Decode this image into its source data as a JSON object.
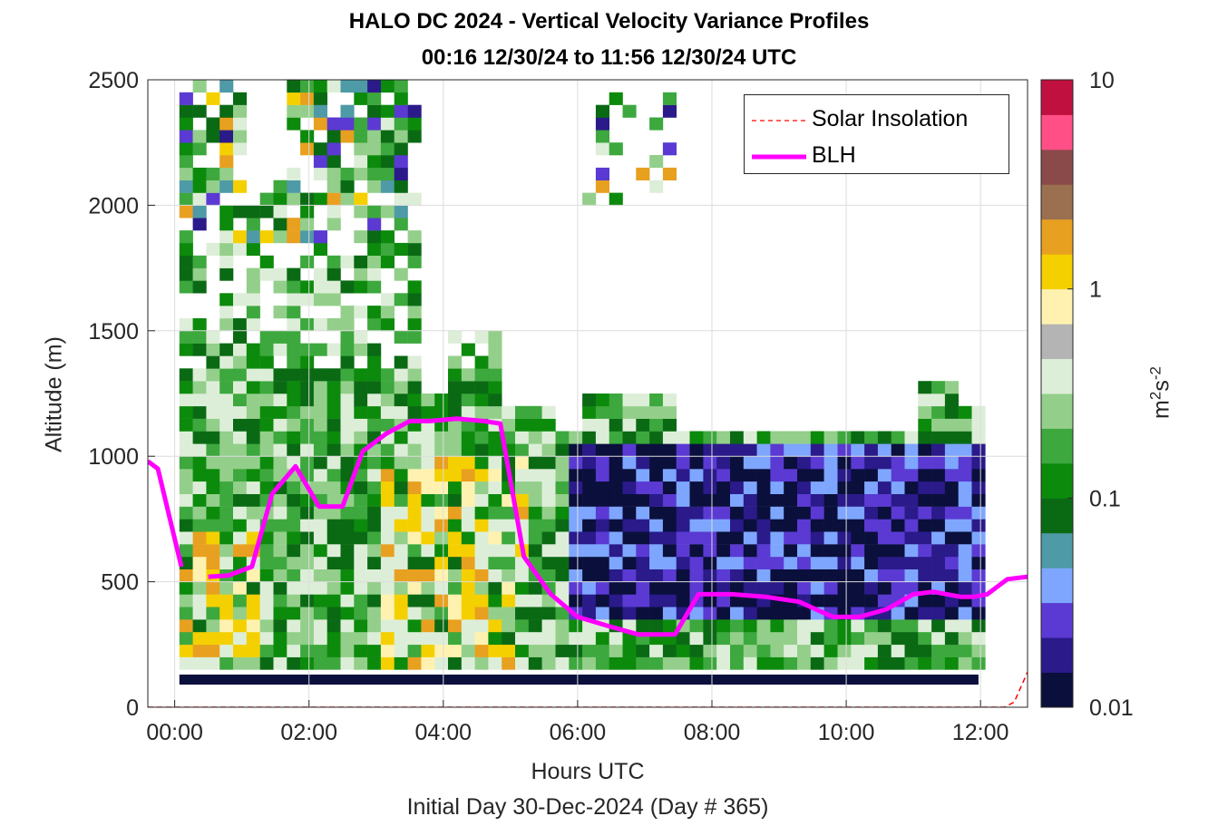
{
  "chart_data": {
    "type": "heatmap",
    "title": "HALO DC 2024 - Vertical Velocity Variance Profiles",
    "subtitle": "00:16 12/30/24 to 11:56 12/30/24  UTC",
    "xlabel": "Hours UTC",
    "ylabel": "Altitude (m)",
    "note": "Initial Day 30-Dec-2024 (Day # 365)",
    "xlim": [
      -0.4,
      12.7
    ],
    "ylim": [
      0,
      2500
    ],
    "grid": true,
    "x_ticks": [
      "00:00",
      "02:00",
      "04:00",
      "06:00",
      "08:00",
      "10:00",
      "12:00"
    ],
    "x_tick_values": [
      0,
      2,
      4,
      6,
      8,
      10,
      12
    ],
    "y_ticks": [
      "0",
      "500",
      "1000",
      "1500",
      "2000",
      "2500"
    ],
    "y_tick_values": [
      0,
      500,
      1000,
      1500,
      2000,
      2500
    ],
    "colorbar": {
      "scale": "log",
      "range": [
        0.01,
        10
      ],
      "tick_labels": [
        "0.01",
        "0.1",
        "1",
        "10"
      ],
      "tick_values": [
        0.01,
        0.1,
        1,
        10
      ],
      "unit_base": "m",
      "unit_sup1": "2",
      "unit_mid": "s",
      "unit_sup2": "-2",
      "colors": [
        "#0a0f3c",
        "#2a1a8a",
        "#5a3ad2",
        "#7ea6ff",
        "#4e9aa6",
        "#0a6a14",
        "#0c8a0c",
        "#3da83d",
        "#93cf8a",
        "#ddeed8",
        "#b4b4b4",
        "#fff2b0",
        "#f5d000",
        "#e8a020",
        "#9a7050",
        "#8a4a4a",
        "#ff4f86",
        "#c01040"
      ]
    },
    "legend": {
      "position": "top-right",
      "entries": [
        "Solar Insolation",
        "BLH"
      ]
    },
    "series": [
      {
        "name": "BLH",
        "color": "#ff00ff",
        "x": [
          -0.4,
          -0.25,
          0.1,
          0.5,
          0.8,
          1.15,
          1.45,
          1.8,
          2.15,
          2.5,
          2.8,
          3.15,
          3.5,
          3.8,
          4.2,
          4.6,
          4.85,
          5.2,
          5.6,
          6.0,
          6.5,
          6.9,
          7.15,
          7.45,
          7.8,
          8.3,
          8.8,
          9.3,
          9.8,
          10.2,
          10.6,
          11.0,
          11.3,
          11.7,
          11.9,
          12.1,
          12.4,
          12.7
        ],
        "y": [
          980,
          950,
          560,
          520,
          525,
          560,
          850,
          960,
          800,
          800,
          1020,
          1090,
          1140,
          1140,
          1150,
          1140,
          1130,
          600,
          450,
          360,
          320,
          290,
          290,
          290,
          450,
          450,
          440,
          420,
          360,
          360,
          390,
          450,
          460,
          440,
          440,
          450,
          510,
          520
        ]
      },
      {
        "name": "Solar Insolation",
        "color": "#ff0000",
        "x": [
          -0.4,
          12.35,
          12.5,
          12.7
        ],
        "y": [
          0,
          0,
          20,
          140
        ]
      }
    ]
  }
}
